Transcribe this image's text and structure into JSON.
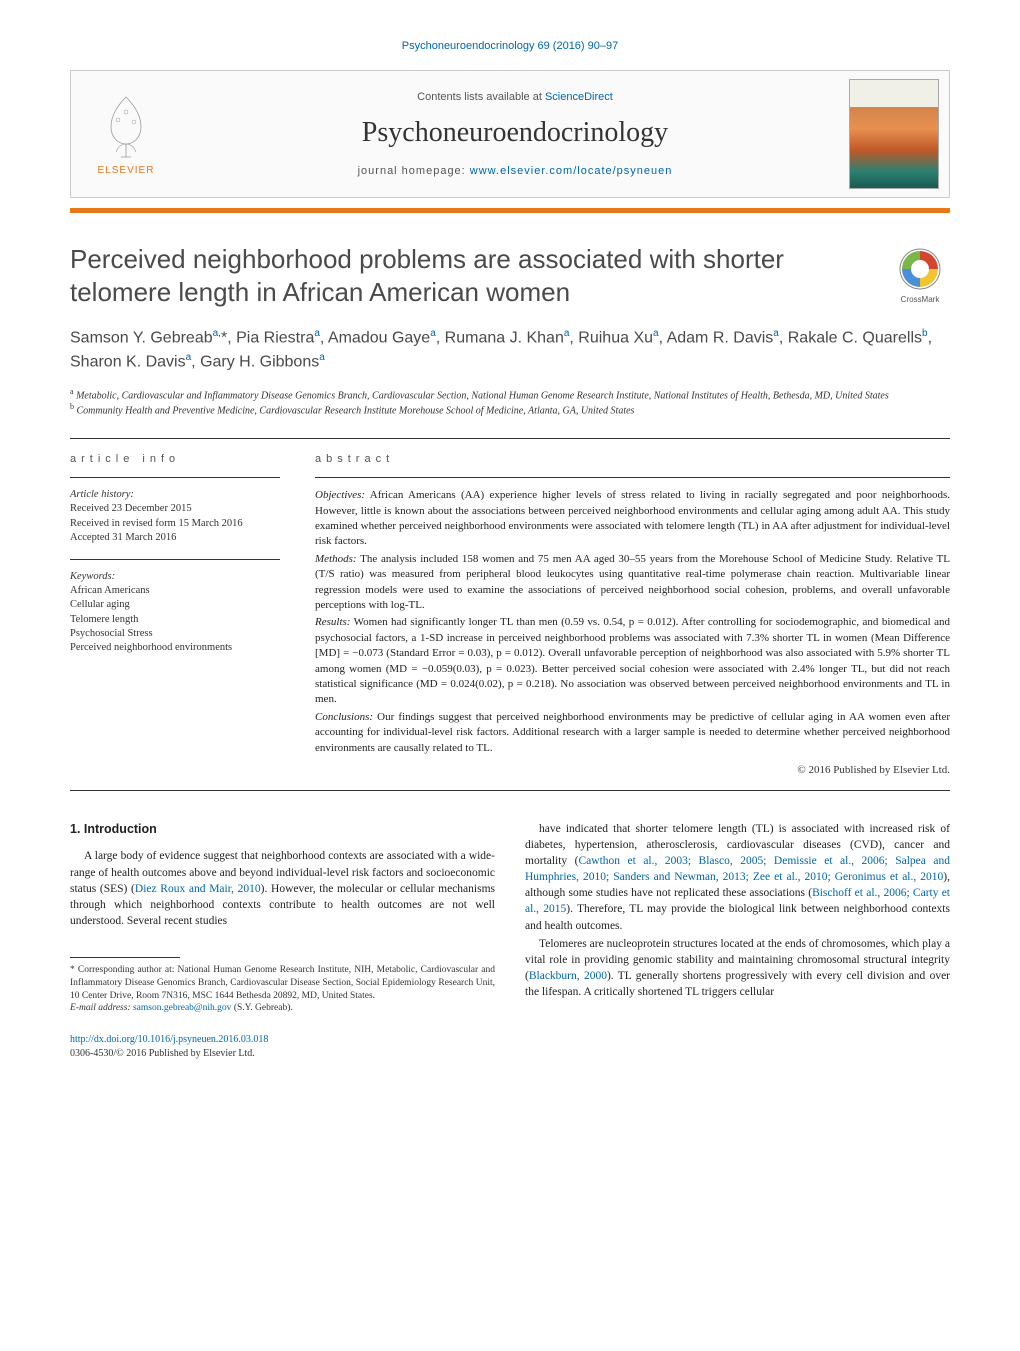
{
  "top_link": "Psychoneuroendocrinology 69 (2016) 90–97",
  "header": {
    "contents_prefix": "Contents lists available at ",
    "contents_link": "ScienceDirect",
    "journal_name": "Psychoneuroendocrinology",
    "homepage_prefix": "journal homepage: ",
    "homepage_link": "www.elsevier.com/locate/psyneuen",
    "elsevier_label": "ELSEVIER"
  },
  "colors": {
    "accent_orange": "#e67817",
    "link_blue": "#0066aa",
    "text_gray": "#4a4a4a",
    "rule": "#333333"
  },
  "crossmark_label": "CrossMark",
  "title": "Perceived neighborhood problems are associated with shorter telomere length in African American women",
  "authors_html": "Samson Y. Gebreab<sup>a,</sup>*, Pia Riestra<sup>a</sup>, Amadou Gaye<sup>a</sup>, Rumana J. Khan<sup>a</sup>, Ruihua Xu<sup>a</sup>, Adam R. Davis<sup>a</sup>, Rakale C. Quarells<sup>b</sup>, Sharon K. Davis<sup>a</sup>, Gary H. Gibbons<sup>a</sup>",
  "affiliations": [
    {
      "sup": "a",
      "text": "Metabolic, Cardiovascular and Inflammatory Disease Genomics Branch, Cardiovascular Section, National Human Genome Research Institute, National Institutes of Health, Bethesda, MD, United States"
    },
    {
      "sup": "b",
      "text": "Community Health and Preventive Medicine, Cardiovascular Research Institute Morehouse School of Medicine, Atlanta, GA, United States"
    }
  ],
  "article_info": {
    "label": "article info",
    "history_head": "Article history:",
    "history": [
      "Received 23 December 2015",
      "Received in revised form 15 March 2016",
      "Accepted 31 March 2016"
    ],
    "keywords_head": "Keywords:",
    "keywords": [
      "African Americans",
      "Cellular aging",
      "Telomere length",
      "Psychosocial Stress",
      "Perceived neighborhood environments"
    ]
  },
  "abstract": {
    "label": "abstract",
    "sections": [
      {
        "head": "Objectives:",
        "body": "African Americans (AA) experience higher levels of stress related to living in racially segregated and poor neighborhoods. However, little is known about the associations between perceived neighborhood environments and cellular aging among adult AA. This study examined whether perceived neighborhood environments were associated with telomere length (TL) in AA after adjustment for individual-level risk factors."
      },
      {
        "head": "Methods:",
        "body": "The analysis included 158 women and 75 men AA aged 30–55 years from the Morehouse School of Medicine Study. Relative TL (T/S ratio) was measured from peripheral blood leukocytes using quantitative real-time polymerase chain reaction. Multivariable linear regression models were used to examine the associations of perceived neighborhood social cohesion, problems, and overall unfavorable perceptions with log-TL."
      },
      {
        "head": "Results:",
        "body": "Women had significantly longer TL than men (0.59 vs. 0.54, p = 0.012). After controlling for sociodemographic, and biomedical and psychosocial factors, a 1-SD increase in perceived neighborhood problems was associated with 7.3% shorter TL in women (Mean Difference [MD] = −0.073 (Standard Error = 0.03), p = 0.012). Overall unfavorable perception of neighborhood was also associated with 5.9% shorter TL among women (MD = −0.059(0.03), p = 0.023). Better perceived social cohesion were associated with 2.4% longer TL, but did not reach statistical significance (MD = 0.024(0.02), p = 0.218). No association was observed between perceived neighborhood environments and TL in men."
      },
      {
        "head": "Conclusions:",
        "body": "Our findings suggest that perceived neighborhood environments may be predictive of cellular aging in AA women even after accounting for individual-level risk factors. Additional research with a larger sample is needed to determine whether perceived neighborhood environments are causally related to TL."
      }
    ],
    "copyright": "© 2016 Published by Elsevier Ltd."
  },
  "body": {
    "section_heading": "1. Introduction",
    "left_paras": [
      "A large body of evidence suggest that neighborhood contexts are associated with a wide-range of health outcomes above and beyond individual-level risk factors and socioeconomic status (SES) (<a class=\"ref\">Diez Roux and Mair, 2010</a>). However, the molecular or cellular mechanisms through which neighborhood contexts contribute to health outcomes are not well understood. Several recent studies"
    ],
    "right_paras": [
      "have indicated that shorter telomere length (TL) is associated with increased risk of diabetes, hypertension, atherosclerosis, cardiovascular diseases (CVD), cancer and mortality (<a class=\"ref\">Cawthon et al., 2003; Blasco, 2005; Demissie et al., 2006; Salpea and Humphries, 2010; Sanders and Newman, 2013; Zee et al., 2010; Geronimus et al., 2010</a>), although some studies have not replicated these associations (<a class=\"ref\">Bischoff et al., 2006; Carty et al., 2015</a>). Therefore, TL may provide the biological link between neighborhood contexts and health outcomes.",
      "Telomeres are nucleoprotein structures located at the ends of chromosomes, which play a vital role in providing genomic stability and maintaining chromosomal structural integrity (<a class=\"ref\">Blackburn, 2000</a>). TL generally shortens progressively with every cell division and over the lifespan. A critically shortened TL triggers cellular"
    ]
  },
  "footnote": {
    "corr": "* Corresponding author at: National Human Genome Research Institute, NIH, Metabolic, Cardiovascular and Inflammatory Disease Genomics Branch, Cardiovascular Disease Section, Social Epidemiology Research Unit, 10 Center Drive, Room 7N316, MSC 1644 Bethesda 20892, MD, United States.",
    "email_label": "E-mail address: ",
    "email": "samson.gebreab@nih.gov",
    "email_suffix": " (S.Y. Gebreab)."
  },
  "doi": {
    "link": "http://dx.doi.org/10.1016/j.psyneuen.2016.03.018",
    "issn": "0306-4530/© 2016 Published by Elsevier Ltd."
  }
}
